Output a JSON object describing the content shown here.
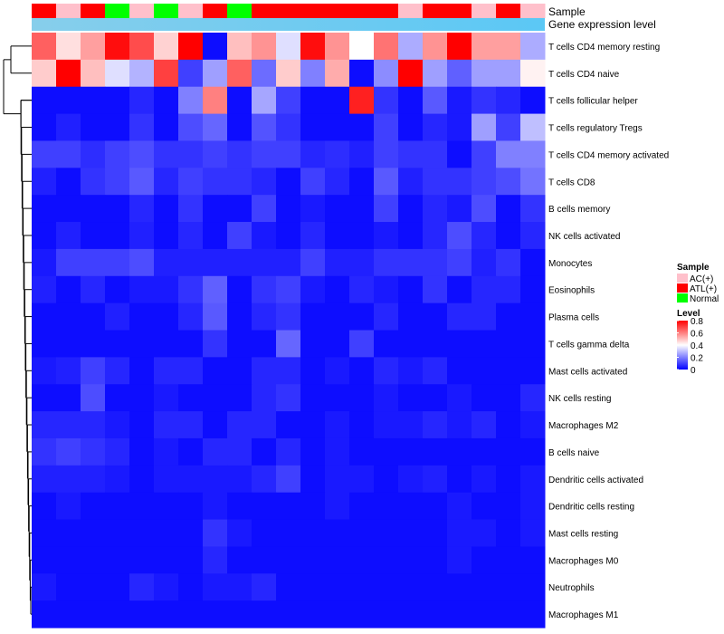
{
  "chart_data": {
    "type": "heatmap",
    "annotation_tracks": [
      "Sample",
      "Gene expression level"
    ],
    "sample_groups": [
      "ATL(+)",
      "AC(+)",
      "ATL(+)",
      "Normal",
      "AC(+)",
      "Normal",
      "AC(+)",
      "ATL(+)",
      "Normal",
      "ATL(+)",
      "ATL(+)",
      "ATL(+)",
      "ATL(+)",
      "ATL(+)",
      "ATL(+)",
      "AC(+)",
      "ATL(+)",
      "ATL(+)",
      "AC(+)",
      "ATL(+)",
      "AC(+)"
    ],
    "cell_types": [
      "T cells CD4 memory resting",
      "T cells CD4 naive",
      "T cells follicular helper",
      "T cells regulatory  Tregs",
      "T cells CD4 memory activated",
      "T cells CD8",
      "B cells memory",
      "NK cells activated",
      "Monocytes",
      "Eosinophils",
      "Plasma cells",
      "T cells gamma delta",
      "Mast cells activated",
      "NK cells resting",
      "Macrophages M2",
      "B cells naive",
      "Dendritic cells activated",
      "Dendritic cells resting",
      "Mast cells resting",
      "Macrophages M0",
      "Neutrophils",
      "Macrophages M1"
    ],
    "values": [
      [
        0.65,
        0.45,
        0.55,
        0.78,
        0.68,
        0.47,
        0.8,
        0.02,
        0.5,
        0.57,
        0.35,
        0.78,
        0.57,
        0.4,
        0.62,
        0.27,
        0.57,
        0.8,
        0.55,
        0.55,
        0.27
      ],
      [
        0.48,
        0.8,
        0.5,
        0.35,
        0.28,
        0.7,
        0.1,
        0.25,
        0.65,
        0.17,
        0.48,
        0.2,
        0.53,
        0.02,
        0.22,
        0.8,
        0.25,
        0.15,
        0.25,
        0.25,
        0.42
      ],
      [
        0.02,
        0.02,
        0.02,
        0.02,
        0.06,
        0.02,
        0.2,
        0.6,
        0.02,
        0.26,
        0.1,
        0.02,
        0.02,
        0.75,
        0.08,
        0.02,
        0.14,
        0.04,
        0.08,
        0.06,
        0.02
      ],
      [
        0.02,
        0.05,
        0.02,
        0.02,
        0.08,
        0.02,
        0.12,
        0.16,
        0.02,
        0.13,
        0.08,
        0.02,
        0.02,
        0.02,
        0.1,
        0.02,
        0.06,
        0.04,
        0.25,
        0.1,
        0.3
      ],
      [
        0.1,
        0.1,
        0.07,
        0.1,
        0.12,
        0.08,
        0.08,
        0.1,
        0.08,
        0.1,
        0.1,
        0.06,
        0.07,
        0.05,
        0.1,
        0.08,
        0.08,
        0.02,
        0.1,
        0.2,
        0.2
      ],
      [
        0.05,
        0.02,
        0.08,
        0.1,
        0.14,
        0.06,
        0.1,
        0.08,
        0.08,
        0.06,
        0.02,
        0.1,
        0.06,
        0.02,
        0.14,
        0.05,
        0.08,
        0.08,
        0.1,
        0.12,
        0.18
      ],
      [
        0.02,
        0.02,
        0.02,
        0.02,
        0.06,
        0.02,
        0.08,
        0.02,
        0.02,
        0.1,
        0.02,
        0.04,
        0.02,
        0.02,
        0.1,
        0.02,
        0.06,
        0.04,
        0.12,
        0.02,
        0.08
      ],
      [
        0.02,
        0.05,
        0.02,
        0.02,
        0.05,
        0.02,
        0.06,
        0.02,
        0.1,
        0.04,
        0.02,
        0.06,
        0.02,
        0.02,
        0.04,
        0.02,
        0.06,
        0.12,
        0.06,
        0.02,
        0.06
      ],
      [
        0.04,
        0.1,
        0.1,
        0.1,
        0.12,
        0.05,
        0.05,
        0.05,
        0.05,
        0.05,
        0.05,
        0.1,
        0.05,
        0.05,
        0.08,
        0.08,
        0.08,
        0.1,
        0.05,
        0.08,
        0.02
      ],
      [
        0.05,
        0.02,
        0.06,
        0.02,
        0.04,
        0.04,
        0.08,
        0.15,
        0.02,
        0.08,
        0.1,
        0.04,
        0.02,
        0.06,
        0.04,
        0.02,
        0.08,
        0.02,
        0.06,
        0.06,
        0.02
      ],
      [
        0.02,
        0.02,
        0.02,
        0.05,
        0.02,
        0.02,
        0.06,
        0.14,
        0.02,
        0.06,
        0.08,
        0.02,
        0.02,
        0.02,
        0.06,
        0.02,
        0.02,
        0.06,
        0.06,
        0.02,
        0.02
      ],
      [
        0.02,
        0.02,
        0.02,
        0.02,
        0.02,
        0.02,
        0.02,
        0.08,
        0.02,
        0.02,
        0.16,
        0.02,
        0.02,
        0.1,
        0.02,
        0.02,
        0.02,
        0.02,
        0.02,
        0.02,
        0.02
      ],
      [
        0.04,
        0.05,
        0.1,
        0.06,
        0.02,
        0.06,
        0.06,
        0.02,
        0.02,
        0.06,
        0.06,
        0.02,
        0.04,
        0.02,
        0.06,
        0.04,
        0.06,
        0.02,
        0.02,
        0.02,
        0.02
      ],
      [
        0.02,
        0.02,
        0.12,
        0.02,
        0.02,
        0.04,
        0.02,
        0.02,
        0.02,
        0.06,
        0.08,
        0.02,
        0.02,
        0.02,
        0.04,
        0.02,
        0.02,
        0.04,
        0.02,
        0.02,
        0.06
      ],
      [
        0.06,
        0.06,
        0.06,
        0.04,
        0.02,
        0.06,
        0.06,
        0.02,
        0.06,
        0.06,
        0.02,
        0.02,
        0.04,
        0.02,
        0.04,
        0.04,
        0.06,
        0.04,
        0.06,
        0.02,
        0.04
      ],
      [
        0.08,
        0.1,
        0.08,
        0.06,
        0.02,
        0.04,
        0.02,
        0.06,
        0.06,
        0.02,
        0.06,
        0.02,
        0.04,
        0.02,
        0.02,
        0.02,
        0.02,
        0.02,
        0.02,
        0.02,
        0.02
      ],
      [
        0.05,
        0.05,
        0.05,
        0.04,
        0.02,
        0.04,
        0.04,
        0.04,
        0.04,
        0.06,
        0.1,
        0.02,
        0.04,
        0.04,
        0.02,
        0.04,
        0.05,
        0.02,
        0.04,
        0.02,
        0.04
      ],
      [
        0.02,
        0.04,
        0.02,
        0.02,
        0.02,
        0.02,
        0.02,
        0.04,
        0.02,
        0.02,
        0.02,
        0.02,
        0.04,
        0.02,
        0.02,
        0.02,
        0.02,
        0.04,
        0.02,
        0.02,
        0.04
      ],
      [
        0.02,
        0.02,
        0.02,
        0.02,
        0.02,
        0.02,
        0.02,
        0.08,
        0.04,
        0.02,
        0.02,
        0.02,
        0.02,
        0.02,
        0.02,
        0.02,
        0.02,
        0.04,
        0.04,
        0.02,
        0.04
      ],
      [
        0.02,
        0.02,
        0.02,
        0.02,
        0.02,
        0.02,
        0.02,
        0.06,
        0.02,
        0.02,
        0.02,
        0.02,
        0.02,
        0.02,
        0.02,
        0.02,
        0.02,
        0.04,
        0.02,
        0.02,
        0.02
      ],
      [
        0.04,
        0.02,
        0.02,
        0.02,
        0.06,
        0.04,
        0.02,
        0.04,
        0.04,
        0.06,
        0.02,
        0.02,
        0.02,
        0.02,
        0.02,
        0.02,
        0.02,
        0.02,
        0.02,
        0.02,
        0.02
      ],
      [
        0.02,
        0.02,
        0.02,
        0.02,
        0.02,
        0.02,
        0.02,
        0.02,
        0.02,
        0.02,
        0.02,
        0.02,
        0.02,
        0.02,
        0.02,
        0.02,
        0.02,
        0.02,
        0.02,
        0.02,
        0.02
      ]
    ],
    "color_scale": {
      "low": "#0000FF",
      "mid": "#FFFFFF",
      "high": "#FF0000",
      "range": [
        0,
        0.8
      ],
      "midpoint": 0.4
    },
    "legend": {
      "sample_title": "Sample",
      "sample_entries": [
        {
          "label": "AC(+)",
          "color": "#FFC0CB"
        },
        {
          "label": "ATL(+)",
          "color": "#FF0000"
        },
        {
          "label": "Normal",
          "color": "#00FF00"
        }
      ],
      "level_title": "Level",
      "level_ticks": [
        {
          "label": "0.8",
          "value": 0.8
        },
        {
          "label": "0.6",
          "value": 0.6
        },
        {
          "label": "0.4",
          "value": 0.4
        },
        {
          "label": "0.2",
          "value": 0.2
        },
        {
          "label": "0",
          "value": 0
        }
      ]
    },
    "gene_expression_gradient": [
      "#87CEEB",
      "#5BC8F5"
    ],
    "placement": {
      "legend": "right",
      "row_labels": "right",
      "dendrogram": "left"
    }
  }
}
